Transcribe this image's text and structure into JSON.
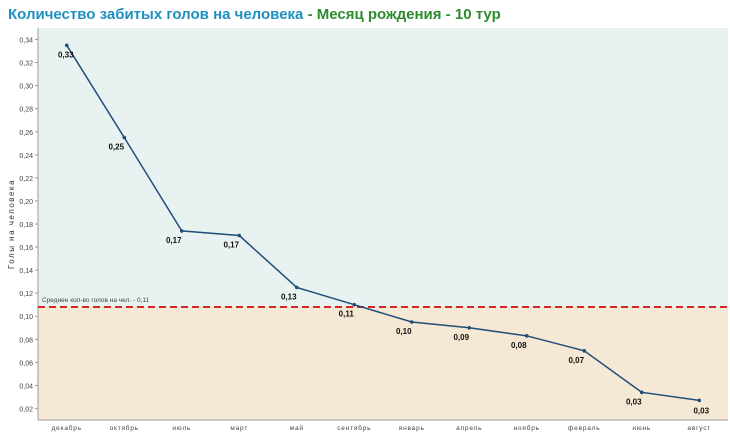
{
  "chart_data": {
    "type": "line",
    "title_part1": "Количество забитых голов на человека",
    "title_part2": " - Месяц рождения - 10 тур",
    "ylabel": "Голы на человека",
    "xlabel": "",
    "ylim": [
      0.01,
      0.35
    ],
    "yticks": [
      "0,02",
      "0,04",
      "0,06",
      "0,08",
      "0,10",
      "0,12",
      "0,14",
      "0,16",
      "0,18",
      "0,20",
      "0,22",
      "0,24",
      "0,26",
      "0,28",
      "0,30",
      "0,32",
      "0,34"
    ],
    "ytick_values": [
      0.02,
      0.04,
      0.06,
      0.08,
      0.1,
      0.12,
      0.14,
      0.16,
      0.18,
      0.2,
      0.22,
      0.24,
      0.26,
      0.28,
      0.3,
      0.32,
      0.34
    ],
    "categories": [
      "декабрь",
      "октябрь",
      "июль",
      "март",
      "май",
      "сентябрь",
      "январь",
      "апрель",
      "ноябрь",
      "февраль",
      "июнь",
      "август"
    ],
    "values": [
      0.335,
      0.255,
      0.174,
      0.17,
      0.125,
      0.11,
      0.095,
      0.09,
      0.083,
      0.07,
      0.034,
      0.027
    ],
    "labels": [
      "0,33",
      "0,25",
      "0,17",
      "0,17",
      "0,13",
      "0,11",
      "0,10",
      "0,09",
      "0,08",
      "0,07",
      "0,03",
      "0,03"
    ],
    "reference_line": {
      "value": 0.108,
      "label": "Среднее кол-во голов на чел. - 0,11"
    },
    "colors": {
      "line": "#1f4e79",
      "above_band": "#e8f3f1",
      "below_band": "#f5e8d4",
      "reference": "#d62728",
      "title_blue": "#1f8fbf",
      "title_green": "#2e8b2e"
    }
  }
}
